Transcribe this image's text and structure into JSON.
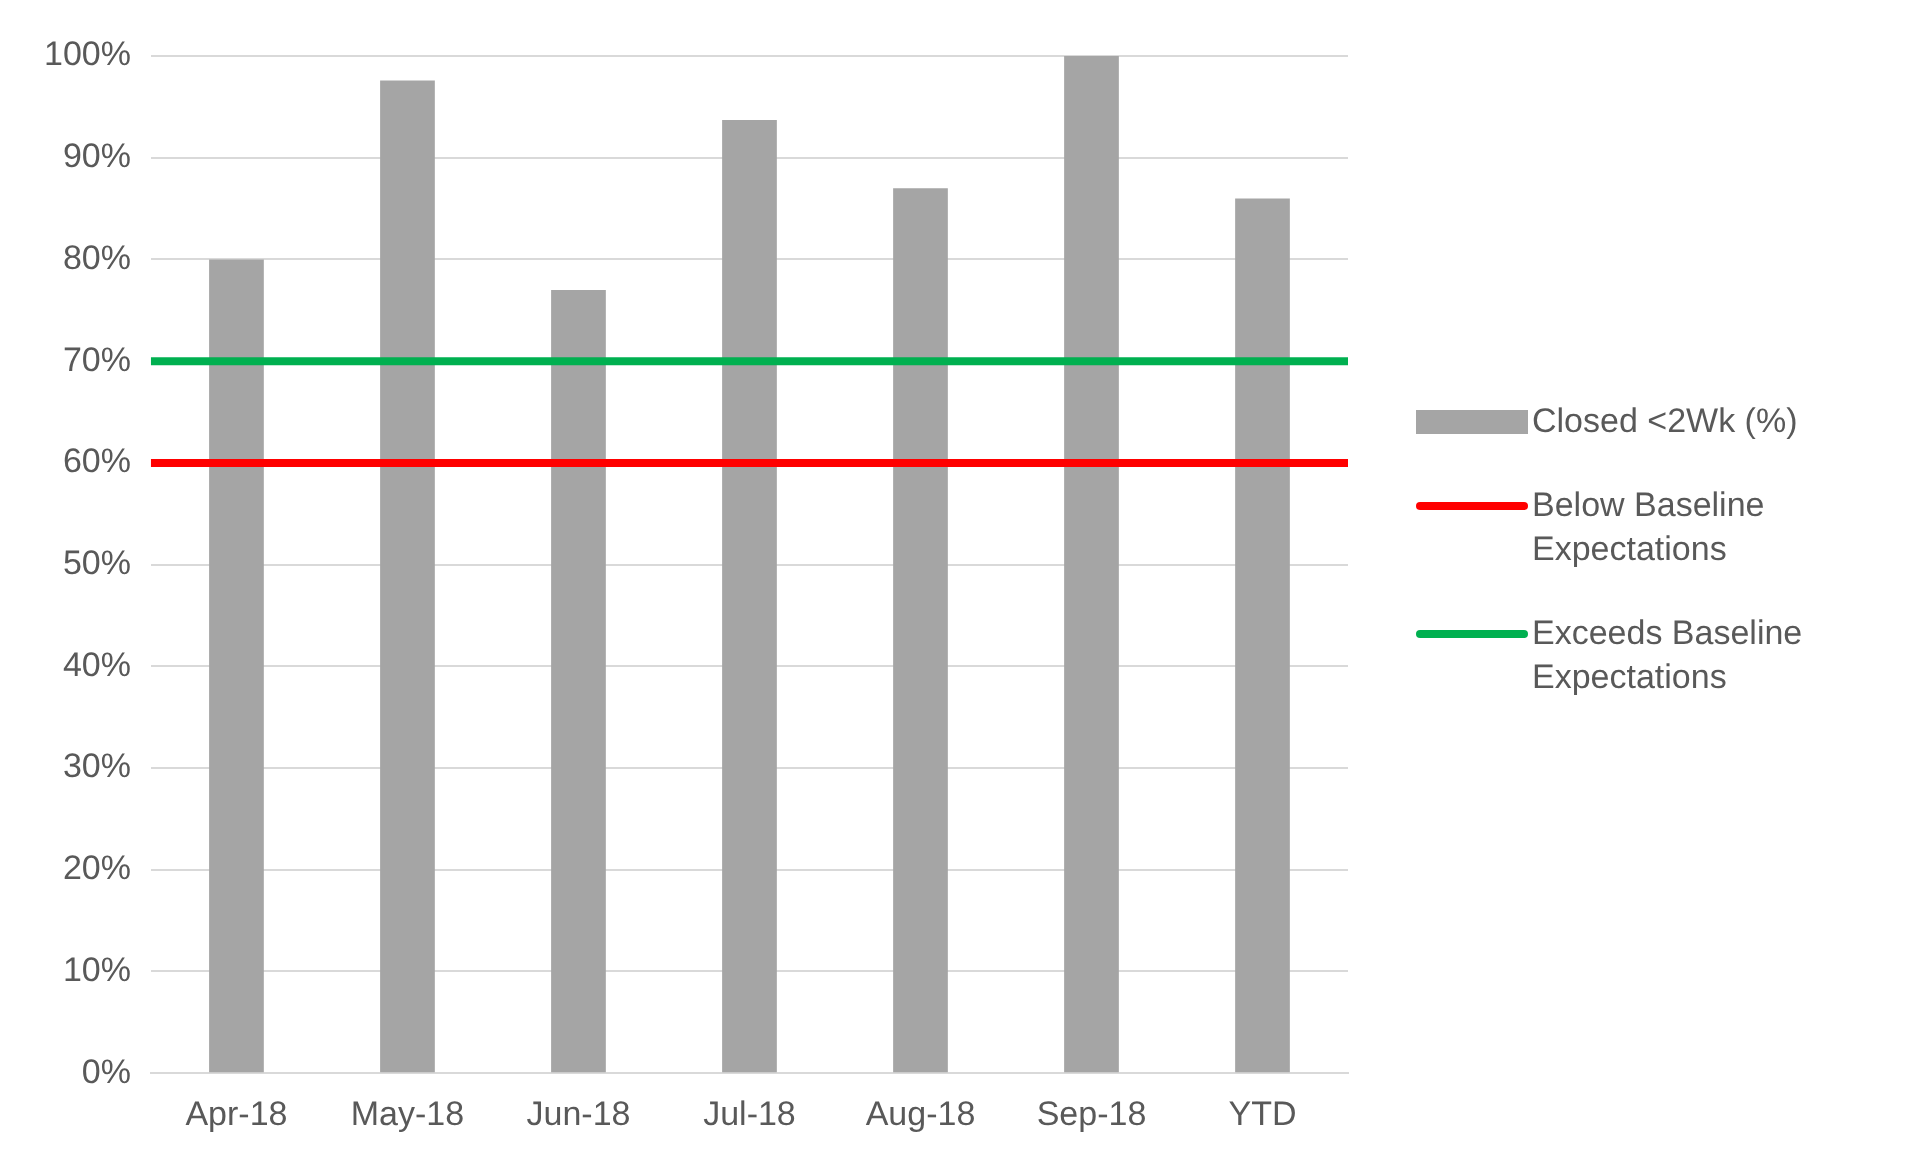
{
  "chart_data": {
    "type": "bar",
    "categories": [
      "Apr-18",
      "May-18",
      "Jun-18",
      "Jul-18",
      "Aug-18",
      "Sep-18",
      "YTD"
    ],
    "series": [
      {
        "name": "Closed <2Wk (%)",
        "color": "#a5a5a5",
        "values": [
          80,
          97.6,
          77,
          93.7,
          87,
          100,
          86
        ]
      }
    ],
    "ylim": [
      0,
      100
    ],
    "yticks": [
      {
        "value": 0,
        "label": "0%"
      },
      {
        "value": 10,
        "label": "10%"
      },
      {
        "value": 20,
        "label": "20%"
      },
      {
        "value": 30,
        "label": "30%"
      },
      {
        "value": 40,
        "label": "40%"
      },
      {
        "value": 50,
        "label": "50%"
      },
      {
        "value": 60,
        "label": "60%"
      },
      {
        "value": 70,
        "label": "70%"
      },
      {
        "value": 80,
        "label": "80%"
      },
      {
        "value": 90,
        "label": "90%"
      },
      {
        "value": 100,
        "label": "100%"
      }
    ],
    "ref_lines": [
      {
        "axis": "y",
        "value": 60,
        "label": "Below Baseline Expectations",
        "color": "#ff0000"
      },
      {
        "axis": "y",
        "value": 70,
        "label": "Exceeds Baseline Expectations",
        "color": "#00b050"
      }
    ],
    "grid": "y",
    "legend": "right"
  }
}
